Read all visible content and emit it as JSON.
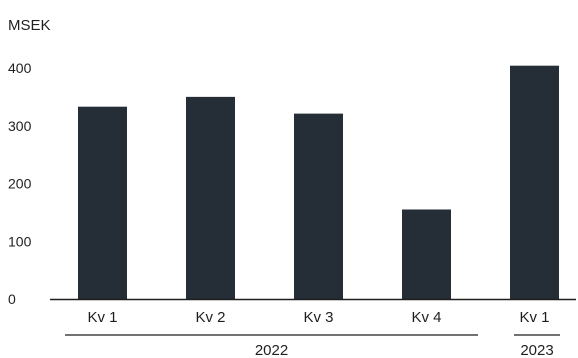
{
  "chart_data": {
    "type": "bar",
    "unit_label": "MSEK",
    "categories": [
      "Kv 1",
      "Kv 2",
      "Kv 3",
      "Kv 4",
      "Kv 1"
    ],
    "values": [
      333,
      350,
      321,
      155,
      404
    ],
    "ylim": [
      0,
      400
    ],
    "yticks": [
      0,
      100,
      200,
      300,
      400
    ],
    "grid": false,
    "bar_color": "#252d36",
    "year_groups": [
      {
        "label": "2022",
        "categories": [
          0,
          1,
          2,
          3
        ]
      },
      {
        "label": "2023",
        "categories": [
          4
        ]
      }
    ]
  }
}
